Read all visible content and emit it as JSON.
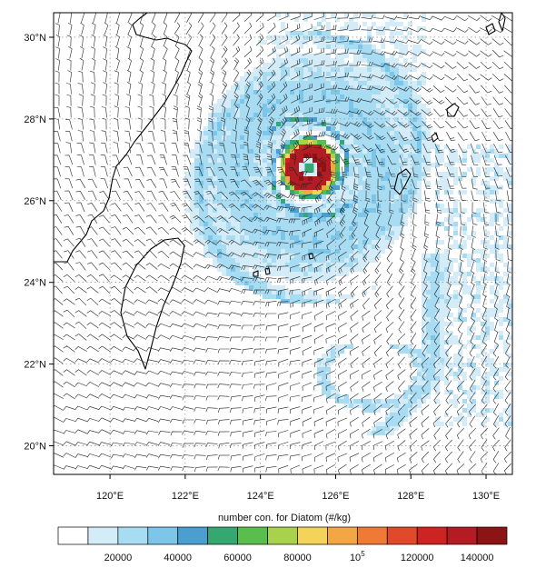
{
  "map": {
    "lon_min": 118.5,
    "lon_max": 130.7,
    "lat_min": 19.3,
    "lat_max": 30.6,
    "lat_ticks": [
      {
        "value": 30,
        "label": "30°N"
      },
      {
        "value": 28,
        "label": "28°N"
      },
      {
        "value": 26,
        "label": "26°N"
      },
      {
        "value": 24,
        "label": "24°N"
      },
      {
        "value": 22,
        "label": "22°N"
      },
      {
        "value": 20,
        "label": "20°N"
      }
    ],
    "lon_ticks": [
      {
        "value": 120,
        "label": "120°E"
      },
      {
        "value": 122,
        "label": "122°E"
      },
      {
        "value": 124,
        "label": "124°E"
      },
      {
        "value": 126,
        "label": "126°E"
      },
      {
        "value": 128,
        "label": "128°E"
      },
      {
        "value": 130,
        "label": "130°E"
      }
    ],
    "grid": "dotted",
    "cyclone_center": {
      "lon": 125.3,
      "lat": 26.8
    }
  },
  "colorbar": {
    "title": "number con. for Diatom  (#/kg)",
    "colors": [
      "#ffffff",
      "#d3ecf8",
      "#a8dcf3",
      "#7cc6ea",
      "#4a9fd0",
      "#34a870",
      "#59be4d",
      "#a8d24c",
      "#f4d35a",
      "#f4a544",
      "#ee7a35",
      "#e04a2a",
      "#cc2323",
      "#b41c24",
      "#8c1414"
    ],
    "labels": [
      {
        "text": "20000",
        "sup": "",
        "index": 2
      },
      {
        "text": "40000",
        "sup": "",
        "index": 4
      },
      {
        "text": "60000",
        "sup": "",
        "index": 6
      },
      {
        "text": "80000",
        "sup": "",
        "index": 8
      },
      {
        "text": "10",
        "sup": "5",
        "index": 10
      },
      {
        "text": "120000",
        "sup": "",
        "index": 12
      },
      {
        "text": "140000",
        "sup": "",
        "index": 14
      }
    ]
  }
}
